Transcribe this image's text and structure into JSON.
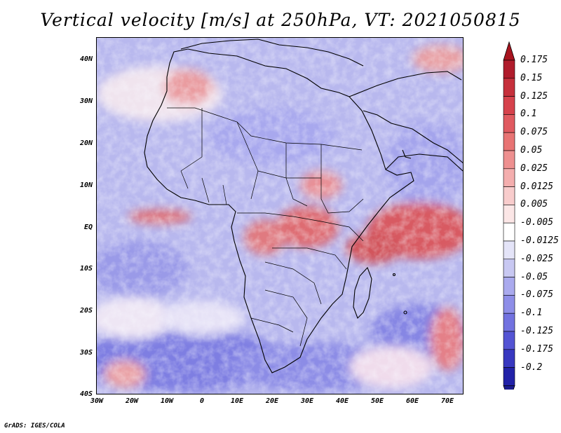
{
  "title": "Vertical velocity [m/s] at 250hPa, VT: 2021050815",
  "credit": "GrADS: IGES/COLA",
  "map": {
    "region": "Africa",
    "lon_range": [
      -30,
      75
    ],
    "lat_range": [
      -40,
      45
    ],
    "lat_ticks": [
      {
        "value": 40,
        "label": "40N"
      },
      {
        "value": 30,
        "label": "30N"
      },
      {
        "value": 20,
        "label": "20N"
      },
      {
        "value": 10,
        "label": "10N"
      },
      {
        "value": 0,
        "label": "EQ"
      },
      {
        "value": -10,
        "label": "10S"
      },
      {
        "value": -20,
        "label": "20S"
      },
      {
        "value": -30,
        "label": "30S"
      },
      {
        "value": -40,
        "label": "40S"
      }
    ],
    "lon_ticks": [
      {
        "value": -30,
        "label": "30W"
      },
      {
        "value": -20,
        "label": "20W"
      },
      {
        "value": -10,
        "label": "10W"
      },
      {
        "value": 0,
        "label": "0"
      },
      {
        "value": 10,
        "label": "10E"
      },
      {
        "value": 20,
        "label": "20E"
      },
      {
        "value": 30,
        "label": "30E"
      },
      {
        "value": 40,
        "label": "40E"
      },
      {
        "value": 50,
        "label": "50E"
      },
      {
        "value": 60,
        "label": "60E"
      },
      {
        "value": 70,
        "label": "70E"
      }
    ]
  },
  "colorbar": {
    "levels": [
      {
        "label": "0.175",
        "color": "#b01c2c"
      },
      {
        "label": "0.15",
        "color": "#c6303c"
      },
      {
        "label": "0.125",
        "color": "#d6424c"
      },
      {
        "label": "0.1",
        "color": "#e05a60"
      },
      {
        "label": "0.075",
        "color": "#e87474"
      },
      {
        "label": "0.05",
        "color": "#ee9090"
      },
      {
        "label": "0.025",
        "color": "#f4aeae"
      },
      {
        "label": "0.0125",
        "color": "#f8cccc"
      },
      {
        "label": "0.005",
        "color": "#fbe6e6"
      },
      {
        "label": "-0.005",
        "color": "#ffffff"
      },
      {
        "label": "-0.0125",
        "color": "#e4e4f8"
      },
      {
        "label": "-0.025",
        "color": "#c8c8f2"
      },
      {
        "label": "-0.05",
        "color": "#aaaaee"
      },
      {
        "label": "-0.075",
        "color": "#8e8ee8"
      },
      {
        "label": "-0.1",
        "color": "#7272e0"
      },
      {
        "label": "-0.125",
        "color": "#5454d4"
      },
      {
        "label": "-0.175",
        "color": "#3838c0"
      },
      {
        "label": "-0.2",
        "color": "#2222a8"
      }
    ],
    "top_color": "#a8141f",
    "bottom_color": "#1c1c90"
  }
}
